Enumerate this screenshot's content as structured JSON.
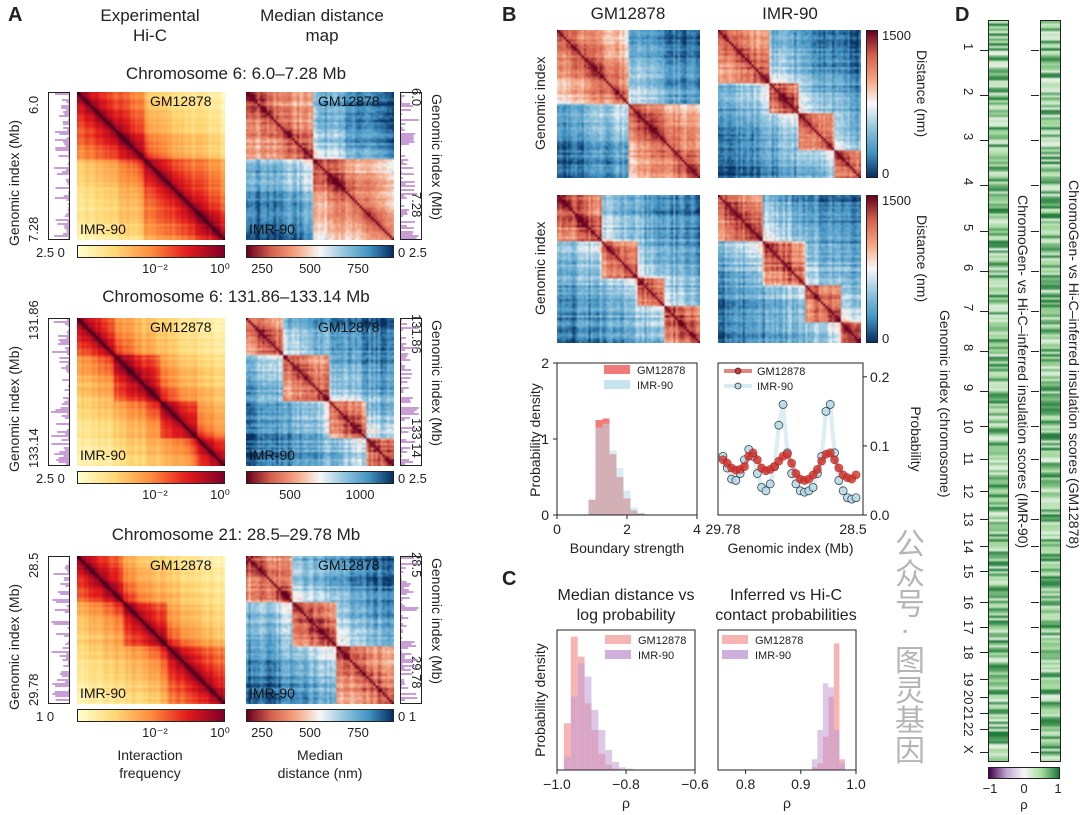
{
  "panel_labels": {
    "a": "A",
    "b": "B",
    "c": "C",
    "d": "D"
  },
  "panel_a": {
    "col_headers": [
      "Experimental\nHi-C",
      "Median distance\nmap"
    ],
    "rows": [
      {
        "title": "Chromosome 6: 6.0–7.28 Mb",
        "start": "6.0",
        "end": "7.28",
        "track_ticks": [
          "2.5",
          "0"
        ],
        "track_ticks_right": [
          "0",
          "2.5"
        ],
        "hic_cbar_ticks": [
          "10⁻²",
          "10⁰"
        ],
        "dist_cbar_ticks": [
          "250",
          "500",
          "750"
        ]
      },
      {
        "title": "Chromosome 6: 131.86–133.14 Mb",
        "start": "131.86",
        "end": "133.14",
        "track_ticks": [
          "2.5",
          "0"
        ],
        "track_ticks_right": [
          "0",
          "2.5"
        ],
        "hic_cbar_ticks": [
          "10⁻²",
          "10⁰"
        ],
        "dist_cbar_ticks": [
          "500",
          "1000"
        ]
      },
      {
        "title": "Chromosome 21: 28.5–29.78 Mb",
        "start": "28.5",
        "end": "29.78",
        "track_ticks": [
          "1",
          "0"
        ],
        "track_ticks_right": [
          "0",
          "1"
        ],
        "hic_cbar_ticks": [
          "10⁻²",
          "10⁰"
        ],
        "dist_cbar_ticks": [
          "250",
          "500",
          "750"
        ]
      }
    ],
    "ylabel": "Genomic index (Mb)",
    "corner_top": "GM12878",
    "corner_bottom": "IMR-90",
    "hic_cbar_label": "Interaction\nfrequency",
    "dist_cbar_label": "Median\ndistance (nm)"
  },
  "panel_b": {
    "titles": [
      "GM12878",
      "IMR-90"
    ],
    "ylabel": "Genomic index",
    "cbar_label": "Distance (nm)",
    "cbar_ticks": [
      "1500",
      "0"
    ]
  },
  "colors": {
    "gm": "#ee5a5a",
    "imr_b": "#b9dce8",
    "imr_c": "#c39bd3",
    "gm_c": "#f4a3a0",
    "green": "#2e7d32",
    "purple": "#6a2a8a"
  },
  "chart_data": [
    {
      "id": "b-hist",
      "type": "bar",
      "title": "",
      "xlabel": "Boundary strength",
      "ylabel": "Probability density",
      "xlim": [
        0,
        4
      ],
      "ylim": [
        0,
        2
      ],
      "xticks": [
        "0",
        "2",
        "4"
      ],
      "yticks": [
        "0",
        "1",
        "2"
      ],
      "bin_edges": [
        0.9,
        1.1,
        1.3,
        1.5,
        1.7,
        1.9,
        2.1,
        2.3,
        2.5
      ],
      "series": [
        {
          "name": "GM12878",
          "values": [
            0.2,
            1.25,
            1.27,
            0.8,
            0.5,
            0.22,
            0.06,
            0.02
          ]
        },
        {
          "name": "IMR-90",
          "values": [
            0.2,
            1.15,
            1.2,
            0.85,
            0.62,
            0.32,
            0.1,
            0.03
          ]
        }
      ],
      "legend": "top-right"
    },
    {
      "id": "b-line",
      "type": "line",
      "xlabel": "Genomic index (Mb)",
      "ylabel": "Probability",
      "ylim": [
        0,
        0.22
      ],
      "xticks": [
        "29.78",
        "28.5"
      ],
      "yticks": [
        "0.0",
        "0.1",
        "0.2"
      ],
      "series": [
        {
          "name": "GM12878",
          "values": [
            0.08,
            0.075,
            0.068,
            0.065,
            0.066,
            0.07,
            0.085,
            0.09,
            0.08,
            0.068,
            0.064,
            0.066,
            0.07,
            0.078,
            0.085,
            0.088,
            0.075,
            0.06,
            0.052,
            0.05,
            0.052,
            0.058,
            0.066,
            0.078,
            0.088,
            0.09,
            0.08,
            0.068,
            0.058,
            0.054,
            0.052,
            0.058
          ]
        },
        {
          "name": "IMR-90",
          "values": [
            0.085,
            0.068,
            0.052,
            0.05,
            0.06,
            0.08,
            0.095,
            0.085,
            0.06,
            0.04,
            0.035,
            0.045,
            0.07,
            0.13,
            0.16,
            0.09,
            0.06,
            0.045,
            0.035,
            0.033,
            0.035,
            0.04,
            0.06,
            0.085,
            0.15,
            0.16,
            0.09,
            0.05,
            0.035,
            0.025,
            0.023,
            0.025
          ]
        }
      ],
      "legend": "top-left"
    },
    {
      "id": "c-left",
      "type": "bar",
      "title": "Median distance vs\nlog probability",
      "xlabel": "ρ",
      "ylabel": "Probability density",
      "xlim": [
        -1.0,
        -0.6
      ],
      "xticks": [
        "−1.0",
        "−0.8",
        "−0.6"
      ],
      "bin_edges": [
        -0.98,
        -0.96,
        -0.94,
        -0.92,
        -0.9,
        -0.88,
        -0.86,
        -0.84,
        -0.82,
        -0.8,
        -0.78
      ],
      "series": [
        {
          "name": "GM12878",
          "values": [
            0.35,
            1.0,
            0.85,
            0.5,
            0.3,
            0.12,
            0.04,
            0.01,
            0,
            0
          ]
        },
        {
          "name": "IMR-90",
          "values": [
            0.1,
            0.55,
            0.8,
            0.7,
            0.45,
            0.3,
            0.15,
            0.06,
            0.02,
            0.01
          ]
        }
      ],
      "legend": "top-right"
    },
    {
      "id": "c-right",
      "type": "bar",
      "title": "Inferred vs Hi-C\ncontact probabilities",
      "xlabel": "ρ",
      "xlim": [
        0.75,
        1.0
      ],
      "xticks": [
        "0.8",
        "0.9",
        "1.0"
      ],
      "bin_edges": [
        0.92,
        0.93,
        0.94,
        0.95,
        0.96,
        0.97,
        0.98,
        0.99
      ],
      "series": [
        {
          "name": "GM12878",
          "values": [
            0.02,
            0.05,
            0.25,
            0.55,
            0.95,
            0.08,
            0.0
          ]
        },
        {
          "name": "IMR-90",
          "values": [
            0.08,
            0.3,
            0.65,
            0.62,
            0.3,
            0.05,
            0.0
          ]
        }
      ],
      "legend": "top-left"
    }
  ],
  "panel_d": {
    "ylabel": "Genomic index (chromosome)",
    "strip_labels": [
      "ChromoGen- vs Hi-C–inferred insulation scores (IMR-90)",
      "ChromoGen- vs Hi-C–inferred insulation scores (GM12878)"
    ],
    "chromosomes": [
      "1",
      "2",
      "3",
      "4",
      "5",
      "6",
      "7",
      "8",
      "9",
      "10",
      "11",
      "12",
      "13",
      "14",
      "15",
      "16",
      "17",
      "18",
      "19",
      "20",
      "21",
      "22",
      "X"
    ],
    "cbar_ticks": [
      "−1",
      "0",
      "1"
    ],
    "cbar_label": "ρ"
  },
  "watermark": "公众号 · 图灵基因"
}
